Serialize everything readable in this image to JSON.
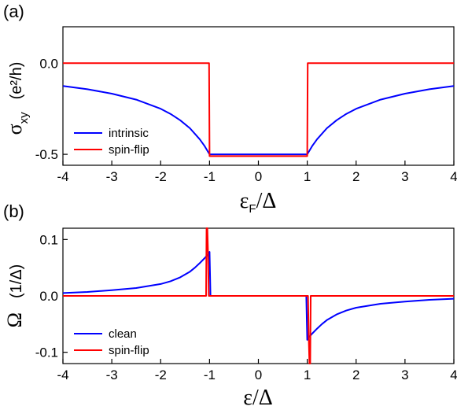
{
  "chart_data": [
    {
      "panel": "(a)",
      "type": "line",
      "xlabel": "ε_F/Δ",
      "xlabel_main": "ε",
      "xlabel_sub": "F",
      "xlabel_tail": "/Δ",
      "ylabel": "σ_xy (e²/h)",
      "ylabel_main": "σ",
      "ylabel_sub": "xy",
      "ylabel_unit": "(e²/h)",
      "xlim": [
        -4,
        4
      ],
      "ylim": [
        -0.56,
        0.2
      ],
      "xticks": [
        -4,
        -3,
        -2,
        -1,
        0,
        1,
        2,
        3,
        4
      ],
      "xtick_labels": [
        "-4",
        "-3",
        "-2",
        "-1",
        "0",
        "1",
        "2",
        "3",
        "4"
      ],
      "yticks": [
        0.0,
        -0.5
      ],
      "ytick_labels": [
        "0.0",
        "-0.5"
      ],
      "legend_position": "bottom-left",
      "series": [
        {
          "name": "intrinsic",
          "color": "#0000ff",
          "x": [
            -4,
            -3.5,
            -3,
            -2.5,
            -2,
            -1.8,
            -1.6,
            -1.4,
            -1.2,
            -1.1,
            -1.0,
            1.0,
            1.1,
            1.2,
            1.4,
            1.6,
            1.8,
            2,
            2.5,
            3,
            3.5,
            4
          ],
          "y": [
            -0.125,
            -0.143,
            -0.167,
            -0.2,
            -0.25,
            -0.278,
            -0.313,
            -0.357,
            -0.417,
            -0.455,
            -0.5,
            -0.5,
            -0.455,
            -0.417,
            -0.357,
            -0.313,
            -0.278,
            -0.25,
            -0.2,
            -0.167,
            -0.143,
            -0.125
          ]
        },
        {
          "name": "spin-flip",
          "color": "#ff0000",
          "x": [
            -4,
            -1.01,
            -1.0,
            1.0,
            1.01,
            4
          ],
          "y": [
            0,
            0,
            -0.51,
            -0.51,
            0,
            0
          ]
        }
      ]
    },
    {
      "panel": "(b)",
      "type": "line",
      "xlabel": "ε/Δ",
      "ylabel": "Ω (1/Δ)",
      "ylabel_main": "Ω",
      "ylabel_unit": "(1/Δ)",
      "xlim": [
        -4,
        4
      ],
      "ylim": [
        -0.12,
        0.12
      ],
      "xticks": [
        -4,
        -3,
        -2,
        -1,
        0,
        1,
        2,
        3,
        4
      ],
      "xtick_labels": [
        "-4",
        "-3",
        "-2",
        "-1",
        "0",
        "1",
        "2",
        "3",
        "4"
      ],
      "yticks": [
        0.1,
        0.0,
        -0.1
      ],
      "ytick_labels": [
        "0.1",
        "0.0",
        "-0.1"
      ],
      "legend_position": "bottom-left",
      "series": [
        {
          "name": "clean",
          "color": "#0000ff",
          "x": [
            -4,
            -3.5,
            -3,
            -2.5,
            -2,
            -1.8,
            -1.6,
            -1.4,
            -1.3,
            -1.2,
            -1.1,
            -1.05,
            -1.02,
            -1.0,
            -0.98,
            0.98,
            1.0,
            1.02,
            1.05,
            1.1,
            1.2,
            1.3,
            1.4,
            1.6,
            1.8,
            2,
            2.5,
            3,
            3.5,
            4
          ],
          "y": [
            0.005,
            0.007,
            0.01,
            0.014,
            0.021,
            0.026,
            0.033,
            0.043,
            0.05,
            0.058,
            0.067,
            0.072,
            0.075,
            0.078,
            0.0,
            0.0,
            -0.078,
            -0.075,
            -0.072,
            -0.067,
            -0.058,
            -0.05,
            -0.043,
            -0.033,
            -0.026,
            -0.021,
            -0.014,
            -0.01,
            -0.007,
            -0.005
          ]
        },
        {
          "name": "spin-flip",
          "color": "#ff0000",
          "x": [
            -4,
            -1.09,
            -1.07,
            -1.06,
            -1.045,
            -1.03,
            -1.015,
            -1.0,
            1.0,
            1.015,
            1.03,
            1.045,
            1.06,
            1.07,
            1.09,
            4
          ],
          "y": [
            0,
            0,
            0,
            0.13,
            0.13,
            0.075,
            0.0,
            0.0,
            0.0,
            0.0,
            -0.075,
            -0.13,
            -0.13,
            0,
            0,
            0
          ]
        }
      ]
    }
  ]
}
